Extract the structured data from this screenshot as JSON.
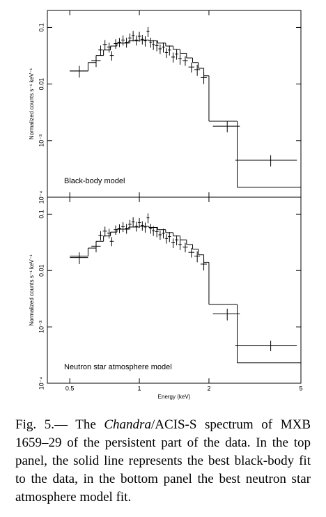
{
  "chart_data": [
    {
      "type": "errorbar",
      "annotation": "Black-body model",
      "ylabel": "Normalized counts s⁻¹ keV⁻¹",
      "log_x": true,
      "log_y": true,
      "xlim": [
        0.4,
        5
      ],
      "ylim": [
        0.0001,
        0.2
      ],
      "yticks": [
        {
          "value": 0.0001,
          "label": "10⁻⁴"
        },
        {
          "value": 0.001,
          "label": "10⁻³"
        },
        0.01,
        0.1
      ],
      "data": {
        "x": [
          0.55,
          0.65,
          0.68,
          0.71,
          0.74,
          0.76,
          0.79,
          0.82,
          0.85,
          0.88,
          0.91,
          0.94,
          0.97,
          1.0,
          1.03,
          1.06,
          1.09,
          1.12,
          1.15,
          1.19,
          1.23,
          1.27,
          1.31,
          1.35,
          1.4,
          1.45,
          1.5,
          1.58,
          1.68,
          1.78,
          1.9,
          2.4,
          3.7
        ],
        "xerr": [
          0.05,
          0.03,
          0.015,
          0.015,
          0.015,
          0.015,
          0.015,
          0.015,
          0.015,
          0.015,
          0.015,
          0.015,
          0.015,
          0.015,
          0.015,
          0.015,
          0.015,
          0.015,
          0.015,
          0.02,
          0.02,
          0.02,
          0.02,
          0.02,
          0.025,
          0.025,
          0.025,
          0.04,
          0.05,
          0.05,
          0.06,
          0.32,
          1.1
        ],
        "y": [
          0.017,
          0.026,
          0.04,
          0.05,
          0.045,
          0.032,
          0.052,
          0.055,
          0.06,
          0.055,
          0.065,
          0.072,
          0.06,
          0.07,
          0.062,
          0.058,
          0.085,
          0.055,
          0.05,
          0.048,
          0.042,
          0.045,
          0.036,
          0.04,
          0.03,
          0.034,
          0.028,
          0.026,
          0.02,
          0.018,
          0.013,
          0.0018,
          0.00045
        ],
        "yerr": [
          0.004,
          0.006,
          0.008,
          0.01,
          0.009,
          0.006,
          0.01,
          0.01,
          0.012,
          0.011,
          0.013,
          0.015,
          0.012,
          0.014,
          0.012,
          0.012,
          0.017,
          0.011,
          0.01,
          0.01,
          0.008,
          0.009,
          0.007,
          0.008,
          0.006,
          0.007,
          0.006,
          0.005,
          0.004,
          0.004,
          0.003,
          0.0004,
          0.0001
        ]
      },
      "model": {
        "bins": [
          0.5,
          0.6,
          0.65,
          0.7,
          0.75,
          0.8,
          0.9,
          1.0,
          1.1,
          1.2,
          1.3,
          1.4,
          1.5,
          1.6,
          1.7,
          1.8,
          1.9,
          2.0,
          2.65,
          5
        ],
        "values": [
          0.017,
          0.024,
          0.032,
          0.04,
          0.047,
          0.053,
          0.058,
          0.06,
          0.058,
          0.053,
          0.047,
          0.041,
          0.035,
          0.029,
          0.024,
          0.019,
          0.014,
          0.0022,
          0.00015
        ]
      }
    },
    {
      "type": "errorbar",
      "annotation": "Neutron star atmosphere model",
      "ylabel": "Normalized counts s⁻¹ keV⁻¹",
      "xlabel": "Energy (keV)",
      "log_x": true,
      "log_y": true,
      "xlim": [
        0.4,
        5
      ],
      "ylim": [
        0.0001,
        0.2
      ],
      "xticks": [
        0.5,
        1,
        2,
        5
      ],
      "yticks": [
        {
          "value": 0.0001,
          "label": "10⁻⁴"
        },
        {
          "value": 0.001,
          "label": "10⁻³"
        },
        0.01,
        0.1
      ],
      "data": {
        "x": [
          0.55,
          0.65,
          0.68,
          0.71,
          0.74,
          0.76,
          0.79,
          0.82,
          0.85,
          0.88,
          0.91,
          0.94,
          0.97,
          1.0,
          1.03,
          1.06,
          1.09,
          1.12,
          1.15,
          1.19,
          1.23,
          1.27,
          1.31,
          1.35,
          1.4,
          1.45,
          1.5,
          1.58,
          1.68,
          1.78,
          1.9,
          2.4,
          3.7
        ],
        "xerr": [
          0.05,
          0.03,
          0.015,
          0.015,
          0.015,
          0.015,
          0.015,
          0.015,
          0.015,
          0.015,
          0.015,
          0.015,
          0.015,
          0.015,
          0.015,
          0.015,
          0.015,
          0.015,
          0.015,
          0.02,
          0.02,
          0.02,
          0.02,
          0.02,
          0.025,
          0.025,
          0.025,
          0.04,
          0.05,
          0.05,
          0.06,
          0.32,
          1.1
        ],
        "y": [
          0.017,
          0.027,
          0.042,
          0.05,
          0.046,
          0.033,
          0.053,
          0.056,
          0.06,
          0.056,
          0.066,
          0.073,
          0.061,
          0.071,
          0.063,
          0.059,
          0.086,
          0.056,
          0.051,
          0.049,
          0.043,
          0.046,
          0.037,
          0.04,
          0.031,
          0.035,
          0.029,
          0.026,
          0.021,
          0.018,
          0.013,
          0.0017,
          0.00047
        ],
        "yerr": [
          0.004,
          0.006,
          0.008,
          0.01,
          0.009,
          0.006,
          0.01,
          0.01,
          0.012,
          0.011,
          0.013,
          0.015,
          0.012,
          0.014,
          0.012,
          0.012,
          0.017,
          0.011,
          0.01,
          0.01,
          0.008,
          0.009,
          0.007,
          0.008,
          0.006,
          0.007,
          0.006,
          0.005,
          0.004,
          0.004,
          0.003,
          0.0004,
          0.0001
        ]
      },
      "model": {
        "bins": [
          0.5,
          0.6,
          0.65,
          0.7,
          0.75,
          0.8,
          0.9,
          1.0,
          1.1,
          1.2,
          1.3,
          1.4,
          1.5,
          1.6,
          1.7,
          1.8,
          1.9,
          2.0,
          2.65,
          5
        ],
        "values": [
          0.018,
          0.025,
          0.033,
          0.041,
          0.048,
          0.054,
          0.059,
          0.061,
          0.058,
          0.053,
          0.047,
          0.041,
          0.035,
          0.029,
          0.024,
          0.019,
          0.014,
          0.0025,
          0.00023
        ]
      }
    }
  ],
  "caption": {
    "prefix": "Fig. 5.— The ",
    "italic": "Chandra",
    "text": "/ACIS-S spectrum of MXB 1659–29 of the persistent part of the data. In the top panel, the solid line represents the best black-body fit to the data, in the bottom panel the best neutron star atmosphere model fit."
  }
}
